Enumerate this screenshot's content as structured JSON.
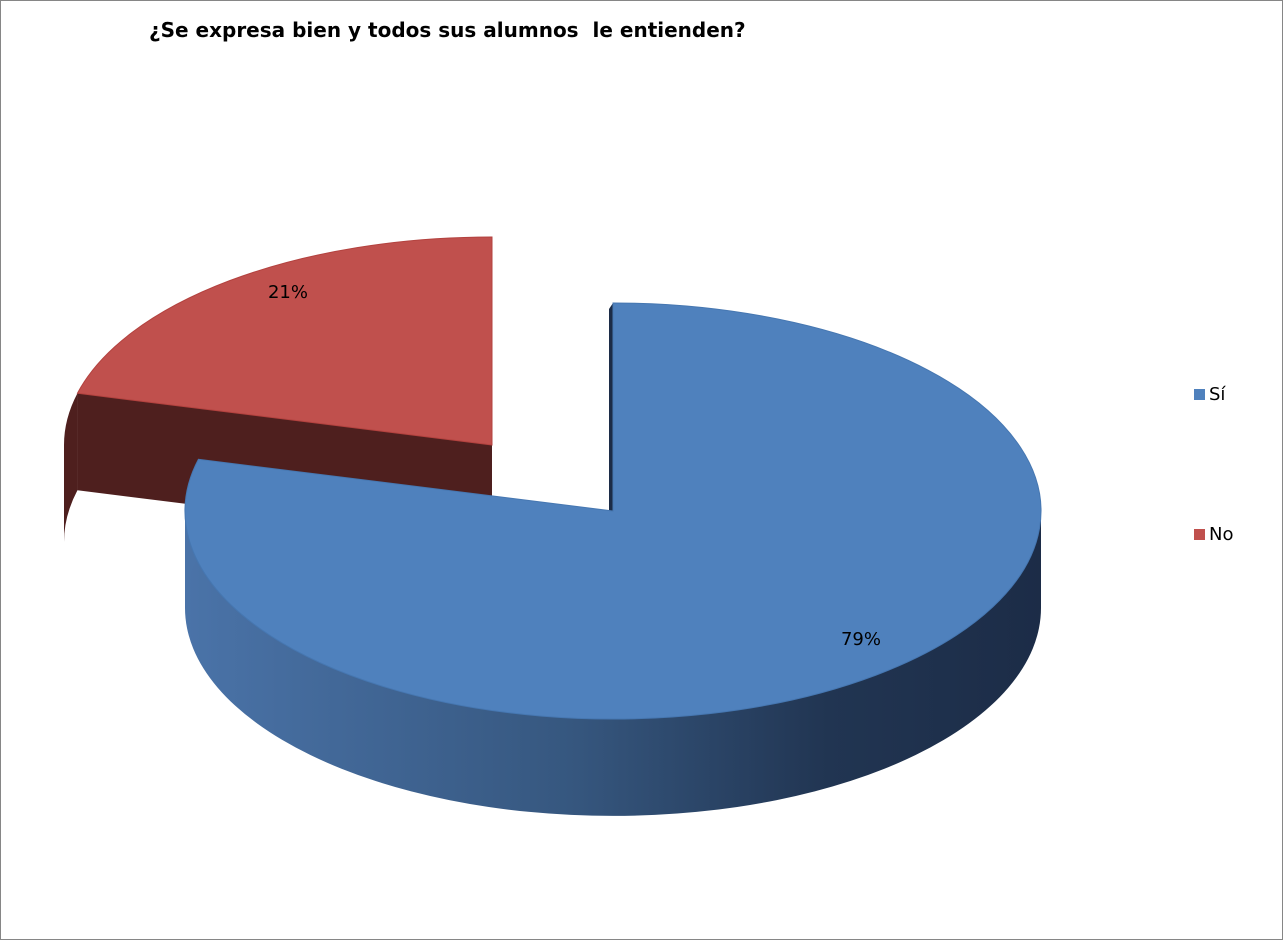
{
  "chart_data": {
    "type": "pie",
    "title": "¿Se expresa bien y todos sus alumnos  le entienden?",
    "categories": [
      "Sí",
      "No"
    ],
    "values": [
      79,
      21
    ],
    "data_labels": [
      "79%",
      "21%"
    ],
    "legend_position": "right",
    "colors": {
      "Sí": {
        "top": "#4f81bd",
        "side_light": "#4a73a8",
        "side_dark": "#1c2c47"
      },
      "No": {
        "top": "#c0504d",
        "side": "#4e1f1e"
      }
    }
  }
}
